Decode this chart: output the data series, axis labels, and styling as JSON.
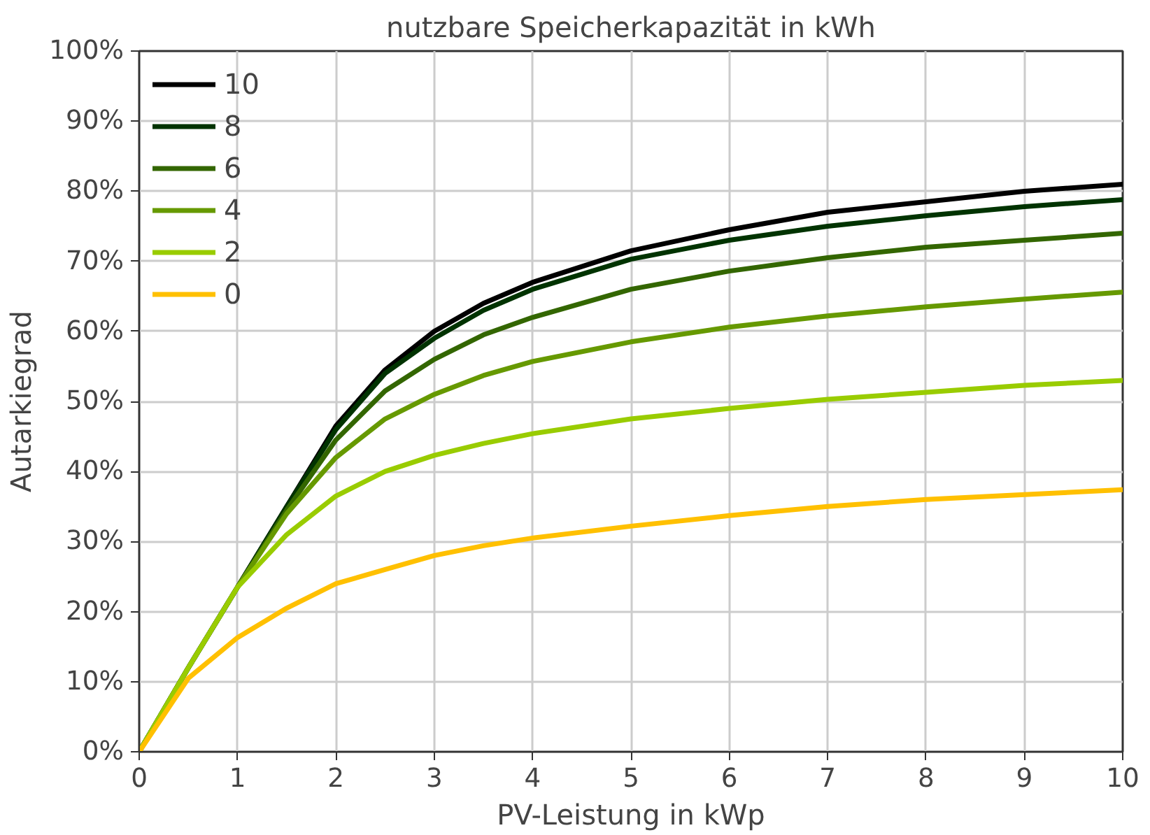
{
  "chart_data": {
    "type": "line",
    "title": "nutzbare Speicherkapazität in kWh",
    "xlabel": "PV-Leistung in kWp",
    "ylabel": "Autarkiegrad",
    "x": [
      0,
      0.5,
      1,
      1.5,
      2,
      2.5,
      3,
      3.5,
      4,
      5,
      6,
      7,
      8,
      9,
      10
    ],
    "series": [
      {
        "name": "10",
        "color": "#000000",
        "values": [
          0,
          12,
          23.5,
          35,
          46.5,
          54.5,
          60,
          64,
          67,
          71.5,
          74.5,
          77,
          78.5,
          80,
          81
        ]
      },
      {
        "name": "8",
        "color": "#003300",
        "values": [
          0,
          12,
          23.5,
          35,
          46,
          54,
          59,
          63,
          66,
          70.3,
          73,
          75,
          76.5,
          77.8,
          78.8
        ]
      },
      {
        "name": "6",
        "color": "#336600",
        "values": [
          0,
          12,
          23.5,
          34.5,
          44.5,
          51.5,
          56,
          59.5,
          62,
          66,
          68.6,
          70.5,
          72,
          73,
          74
        ]
      },
      {
        "name": "4",
        "color": "#669900",
        "values": [
          0,
          12,
          23.5,
          34,
          42,
          47.5,
          51,
          53.7,
          55.7,
          58.5,
          60.6,
          62.2,
          63.5,
          64.6,
          65.6
        ]
      },
      {
        "name": "2",
        "color": "#99cc00",
        "values": [
          0,
          12,
          23.5,
          31,
          36.5,
          40,
          42.3,
          44,
          45.4,
          47.5,
          49,
          50.3,
          51.3,
          52.3,
          53
        ]
      },
      {
        "name": "0",
        "color": "#ffc000",
        "values": [
          0,
          10.5,
          16.3,
          20.5,
          24,
          26,
          28,
          29.4,
          30.5,
          32.2,
          33.7,
          35,
          36,
          36.7,
          37.4
        ]
      }
    ],
    "xlim": [
      0,
      10
    ],
    "xticks": [
      0,
      1,
      2,
      3,
      4,
      5,
      6,
      7,
      8,
      9,
      10
    ],
    "ylim": [
      0,
      100
    ],
    "yticks": [
      {
        "value": 0,
        "label": "0%"
      },
      {
        "value": 10,
        "label": "10%"
      },
      {
        "value": 20,
        "label": "20%"
      },
      {
        "value": 30,
        "label": "30%"
      },
      {
        "value": 40,
        "label": "40%"
      },
      {
        "value": 50,
        "label": "50%"
      },
      {
        "value": 60,
        "label": "60%"
      },
      {
        "value": 70,
        "label": "70%"
      },
      {
        "value": 80,
        "label": "80%"
      },
      {
        "value": 90,
        "label": "90%"
      },
      {
        "value": 100,
        "label": "100%"
      }
    ],
    "grid": true,
    "legend": "top left",
    "line_style": "solid"
  }
}
